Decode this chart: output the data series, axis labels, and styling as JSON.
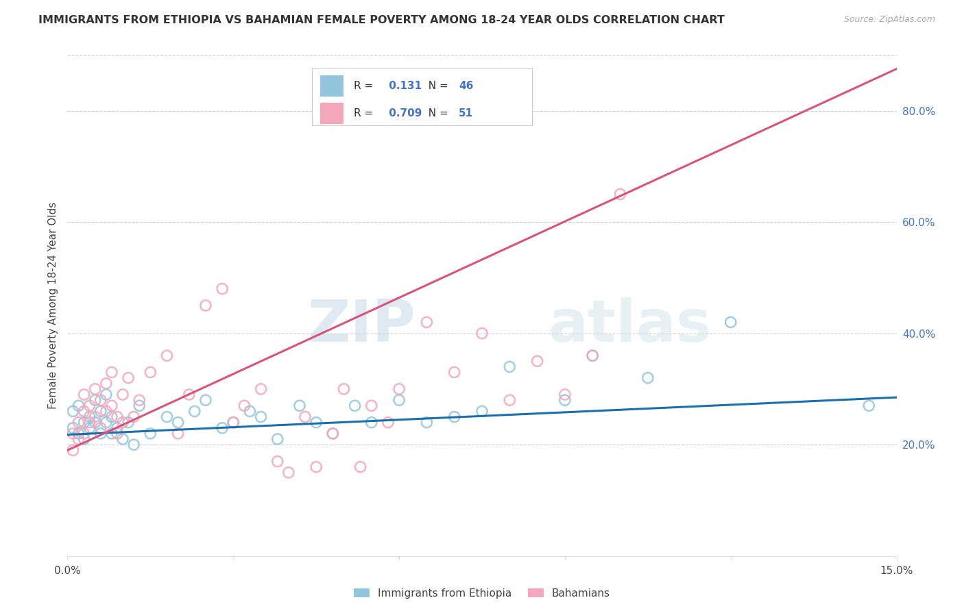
{
  "title": "IMMIGRANTS FROM ETHIOPIA VS BAHAMIAN FEMALE POVERTY AMONG 18-24 YEAR OLDS CORRELATION CHART",
  "source": "Source: ZipAtlas.com",
  "ylabel": "Female Poverty Among 18-24 Year Olds",
  "xlim": [
    0.0,
    0.15
  ],
  "ylim": [
    0.0,
    0.9
  ],
  "yticks": [
    0.2,
    0.4,
    0.6,
    0.8
  ],
  "ytick_labels": [
    "20.0%",
    "40.0%",
    "60.0%",
    "80.0%"
  ],
  "xticks": [
    0.0,
    0.03,
    0.06,
    0.09,
    0.12,
    0.15
  ],
  "xtick_labels": [
    "0.0%",
    "",
    "",
    "",
    "",
    "15.0%"
  ],
  "blue_R": 0.131,
  "blue_N": 46,
  "pink_R": 0.709,
  "pink_N": 51,
  "blue_color": "#92c5de",
  "pink_color": "#f4a6ba",
  "blue_line_color": "#1a6faf",
  "pink_line_color": "#d9547a",
  "watermark_zip": "ZIP",
  "watermark_atlas": "atlas",
  "legend_label_blue": "Immigrants from Ethiopia",
  "legend_label_pink": "Bahamians",
  "blue_scatter_x": [
    0.001,
    0.001,
    0.002,
    0.002,
    0.003,
    0.003,
    0.004,
    0.004,
    0.005,
    0.005,
    0.006,
    0.006,
    0.007,
    0.007,
    0.008,
    0.008,
    0.009,
    0.01,
    0.011,
    0.012,
    0.013,
    0.015,
    0.018,
    0.02,
    0.023,
    0.025,
    0.028,
    0.03,
    0.033,
    0.035,
    0.038,
    0.042,
    0.045,
    0.048,
    0.052,
    0.055,
    0.06,
    0.065,
    0.07,
    0.075,
    0.08,
    0.09,
    0.095,
    0.105,
    0.12,
    0.145
  ],
  "blue_scatter_y": [
    0.26,
    0.23,
    0.27,
    0.22,
    0.24,
    0.21,
    0.25,
    0.23,
    0.28,
    0.24,
    0.22,
    0.26,
    0.29,
    0.24,
    0.25,
    0.22,
    0.23,
    0.21,
    0.24,
    0.2,
    0.27,
    0.22,
    0.25,
    0.24,
    0.26,
    0.28,
    0.23,
    0.24,
    0.26,
    0.25,
    0.21,
    0.27,
    0.24,
    0.22,
    0.27,
    0.24,
    0.28,
    0.24,
    0.25,
    0.26,
    0.34,
    0.28,
    0.36,
    0.32,
    0.42,
    0.27
  ],
  "pink_scatter_x": [
    0.001,
    0.001,
    0.002,
    0.002,
    0.003,
    0.003,
    0.003,
    0.004,
    0.004,
    0.005,
    0.005,
    0.006,
    0.006,
    0.007,
    0.007,
    0.008,
    0.008,
    0.009,
    0.009,
    0.01,
    0.01,
    0.011,
    0.012,
    0.013,
    0.015,
    0.018,
    0.02,
    0.022,
    0.025,
    0.028,
    0.03,
    0.032,
    0.035,
    0.038,
    0.04,
    0.043,
    0.045,
    0.048,
    0.05,
    0.053,
    0.055,
    0.058,
    0.06,
    0.065,
    0.07,
    0.075,
    0.08,
    0.085,
    0.09,
    0.095,
    0.1
  ],
  "pink_scatter_y": [
    0.22,
    0.19,
    0.24,
    0.21,
    0.26,
    0.22,
    0.29,
    0.24,
    0.27,
    0.25,
    0.3,
    0.28,
    0.23,
    0.31,
    0.26,
    0.33,
    0.27,
    0.25,
    0.22,
    0.29,
    0.24,
    0.32,
    0.25,
    0.28,
    0.33,
    0.36,
    0.22,
    0.29,
    0.45,
    0.48,
    0.24,
    0.27,
    0.3,
    0.17,
    0.15,
    0.25,
    0.16,
    0.22,
    0.3,
    0.16,
    0.27,
    0.24,
    0.3,
    0.42,
    0.33,
    0.4,
    0.28,
    0.35,
    0.29,
    0.36,
    0.65
  ],
  "blue_regline_x": [
    0.0,
    0.15
  ],
  "blue_regline_y": [
    0.218,
    0.285
  ],
  "pink_regline_x": [
    0.0,
    0.15
  ],
  "pink_regline_y": [
    0.19,
    0.875
  ]
}
